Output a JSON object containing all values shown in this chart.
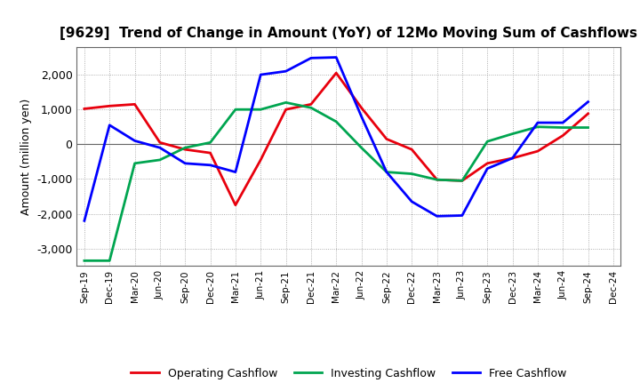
{
  "title": "[9629]  Trend of Change in Amount (YoY) of 12Mo Moving Sum of Cashflows",
  "ylabel": "Amount (million yen)",
  "x_labels": [
    "Sep-19",
    "Dec-19",
    "Mar-20",
    "Jun-20",
    "Sep-20",
    "Dec-20",
    "Mar-21",
    "Jun-21",
    "Sep-21",
    "Dec-21",
    "Mar-22",
    "Jun-22",
    "Sep-22",
    "Dec-22",
    "Mar-23",
    "Jun-23",
    "Sep-23",
    "Dec-23",
    "Mar-24",
    "Jun-24",
    "Sep-24",
    "Dec-24"
  ],
  "operating": [
    1020,
    1100,
    1150,
    50,
    -150,
    -250,
    -1750,
    -450,
    1000,
    1150,
    2050,
    1050,
    150,
    -150,
    -1020,
    -1050,
    -550,
    -400,
    -200,
    250,
    880,
    null
  ],
  "investing": [
    -3350,
    -3350,
    -550,
    -450,
    -100,
    50,
    1000,
    1000,
    1200,
    1050,
    650,
    -100,
    -800,
    -850,
    -1020,
    -1050,
    80,
    300,
    500,
    480,
    480,
    null
  ],
  "free": [
    -2200,
    550,
    100,
    -100,
    -550,
    -600,
    -800,
    2000,
    2100,
    2480,
    2500,
    800,
    -800,
    -1650,
    -2070,
    -2050,
    -700,
    -400,
    620,
    620,
    1220,
    null
  ],
  "operating_color": "#e8000d",
  "investing_color": "#00a550",
  "free_color": "#0000ff",
  "ylim": [
    -3500,
    2800
  ],
  "yticks": [
    -3000,
    -2000,
    -1000,
    0,
    1000,
    2000
  ],
  "background_color": "#ffffff",
  "grid_color": "#999999",
  "title_fontsize": 11,
  "axis_fontsize": 9,
  "legend_fontsize": 9,
  "linewidth": 2.0
}
